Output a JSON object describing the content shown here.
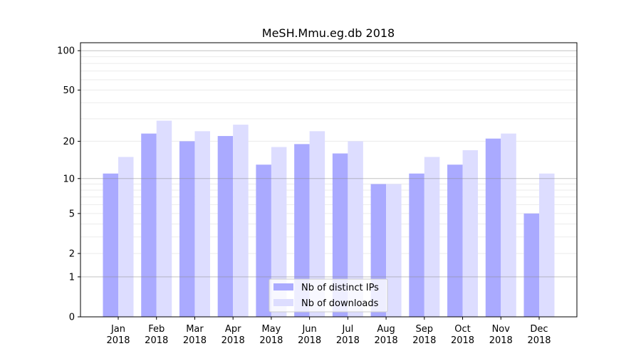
{
  "chart_data": {
    "type": "bar",
    "title": "MeSH.Mmu.eg.db 2018",
    "xlabel": "",
    "ylabel": "",
    "yscale": "log(1+y)",
    "ylim": [
      0,
      110
    ],
    "yticks": [
      0,
      1,
      2,
      5,
      10,
      20,
      50,
      100
    ],
    "grid": true,
    "legend_position": "bottom-center",
    "categories": [
      "Jan\n2018",
      "Feb\n2018",
      "Mar\n2018",
      "Apr\n2018",
      "May\n2018",
      "Jun\n2018",
      "Jul\n2018",
      "Aug\n2018",
      "Sep\n2018",
      "Oct\n2018",
      "Nov\n2018",
      "Dec\n2018"
    ],
    "series": [
      {
        "name": "Nb of distinct IPs",
        "color": "#aaaaff",
        "values": [
          11,
          23,
          20,
          22,
          13,
          19,
          16,
          9,
          11,
          13,
          21,
          5
        ]
      },
      {
        "name": "Nb of downloads",
        "color": "#ddddff",
        "values": [
          15,
          29,
          24,
          27,
          18,
          24,
          20,
          9,
          15,
          17,
          23,
          11
        ]
      }
    ]
  }
}
